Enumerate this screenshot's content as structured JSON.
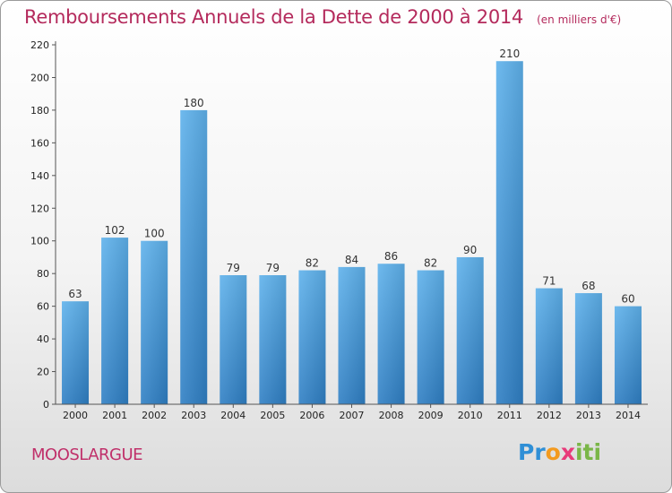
{
  "chart_data": {
    "type": "bar",
    "title": "Remboursements Annuels de la Dette de 2000 à 2014",
    "subtitle": "(en milliers d'€)",
    "xlabel": "",
    "ylabel": "",
    "categories": [
      "2000",
      "2001",
      "2002",
      "2003",
      "2004",
      "2005",
      "2006",
      "2007",
      "2008",
      "2009",
      "2010",
      "2011",
      "2012",
      "2013",
      "2014"
    ],
    "values": [
      63,
      102,
      100,
      180,
      79,
      79,
      82,
      84,
      86,
      82,
      90,
      210,
      71,
      68,
      60
    ],
    "ylim": [
      0,
      220
    ],
    "yticks": [
      0,
      20,
      40,
      60,
      80,
      100,
      120,
      140,
      160,
      180,
      200,
      220
    ],
    "grid": false,
    "bar_color": "#4a9fe0"
  },
  "footer": {
    "commune": "MOOSLARGUE",
    "brand_parts": [
      "Pr",
      "o",
      "x",
      "iti"
    ]
  }
}
